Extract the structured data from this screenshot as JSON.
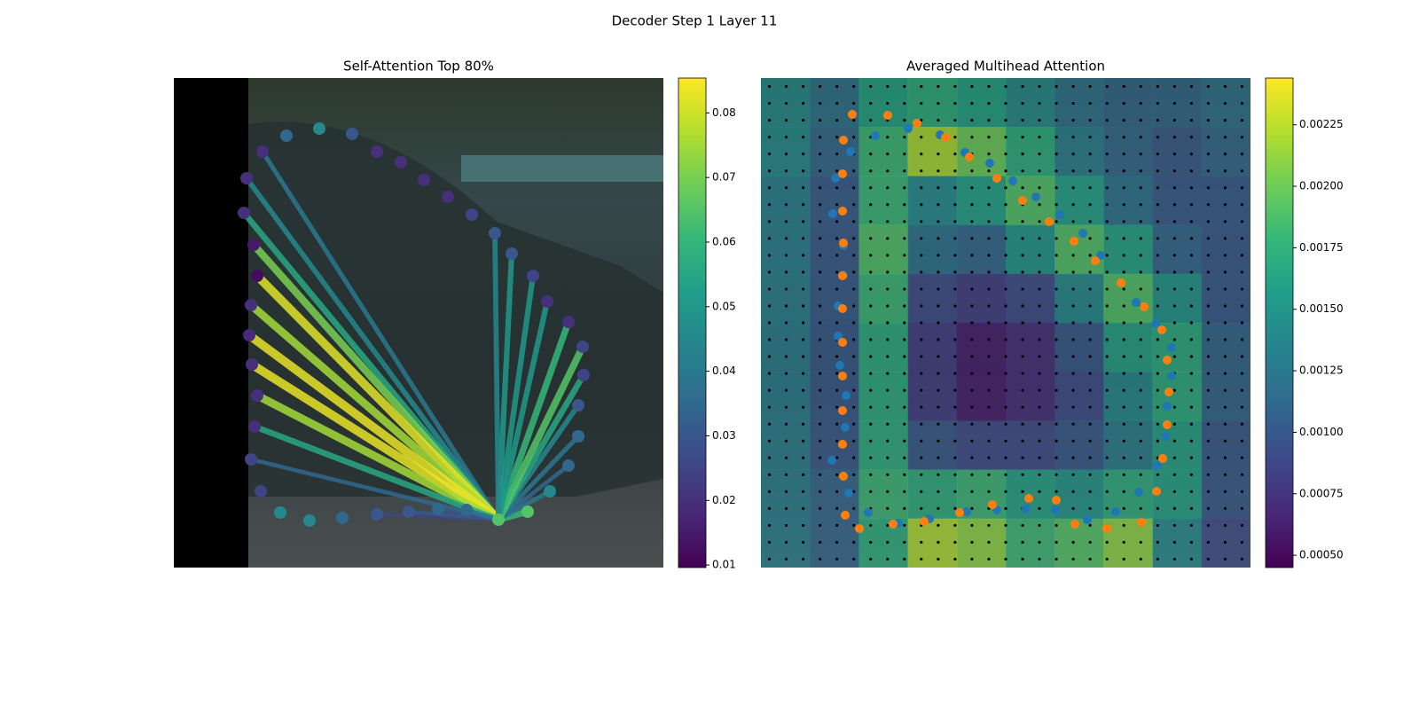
{
  "title": "Decoder Step 1 Layer 11",
  "chart_data": [
    {
      "type": "attention",
      "title": "Self-Attention Top 80%",
      "points": {
        "x": [
          100,
          82,
          79,
          90,
          94,
          87,
          85,
          88,
          94,
          91,
          87,
          98,
          120,
          153,
          190,
          229,
          265,
          298,
          330,
          366,
          399,
          424,
          445,
          456,
          456,
          462,
          461,
          445,
          421,
          405,
          381,
          362,
          336,
          309,
          282,
          256,
          229,
          201,
          164,
          127
        ],
        "y": [
          83,
          113,
          152,
          188,
          223,
          256,
          290,
          323,
          358,
          393,
          430,
          466,
          490,
          499,
          496,
          492,
          489,
          486,
          487,
          498,
          489,
          466,
          437,
          404,
          369,
          335,
          303,
          275,
          252,
          223,
          198,
          175,
          154,
          134,
          115,
          95,
          83,
          63,
          57,
          65
        ],
        "values": [
          0.02,
          0.02,
          0.02,
          0.015,
          0.012,
          0.02,
          0.018,
          0.02,
          0.02,
          0.02,
          0.025,
          0.025,
          0.045,
          0.045,
          0.035,
          0.03,
          0.03,
          0.035,
          0.035,
          0.065,
          0.065,
          0.045,
          0.035,
          0.035,
          0.03,
          0.025,
          0.025,
          0.02,
          0.02,
          0.025,
          0.03,
          0.03,
          0.025,
          0.02,
          0.02,
          0.02,
          0.02,
          0.03,
          0.045,
          0.035
        ]
      },
      "query": {
        "x": 366,
        "y": 498
      },
      "links": {
        "x": [
          100,
          82,
          79,
          90,
          94,
          87,
          85,
          88,
          94,
          91,
          87,
          229,
          265,
          298,
          330,
          399,
          424,
          445,
          456,
          456,
          462,
          461,
          445,
          421,
          405,
          381,
          362
        ],
        "y": [
          83,
          113,
          152,
          188,
          223,
          256,
          290,
          323,
          358,
          393,
          430,
          492,
          489,
          486,
          487,
          489,
          466,
          437,
          404,
          369,
          335,
          303,
          275,
          252,
          223,
          198,
          175
        ],
        "values": [
          0.04,
          0.045,
          0.055,
          0.07,
          0.082,
          0.075,
          0.083,
          0.083,
          0.075,
          0.055,
          0.035,
          0.025,
          0.03,
          0.03,
          0.04,
          0.06,
          0.04,
          0.035,
          0.04,
          0.045,
          0.055,
          0.065,
          0.06,
          0.05,
          0.05,
          0.05,
          0.045
        ]
      },
      "colorbar": {
        "lim": [
          0.0096,
          0.0854
        ],
        "ticks": [
          0.01,
          0.02,
          0.03,
          0.04,
          0.05,
          0.06,
          0.07,
          0.08
        ]
      }
    },
    {
      "type": "heatmap",
      "title": "Averaged Multihead Attention",
      "values": [
        [
          0.0014,
          0.0012,
          0.0016,
          0.0017,
          0.0016,
          0.0014,
          0.0012,
          0.0011,
          0.0011,
          0.0012
        ],
        [
          0.0014,
          0.0011,
          0.0018,
          0.0022,
          0.002,
          0.0017,
          0.0013,
          0.0011,
          0.001,
          0.0011
        ],
        [
          0.0013,
          0.001,
          0.0018,
          0.0014,
          0.0016,
          0.0019,
          0.0016,
          0.0012,
          0.001,
          0.001
        ],
        [
          0.0013,
          0.001,
          0.0019,
          0.0012,
          0.0011,
          0.0015,
          0.0019,
          0.0016,
          0.0011,
          0.001
        ],
        [
          0.0013,
          0.001,
          0.0018,
          0.0009,
          0.0008,
          0.0009,
          0.0014,
          0.0019,
          0.0015,
          0.001
        ],
        [
          0.0013,
          0.001,
          0.0017,
          0.0008,
          0.0006,
          0.0007,
          0.001,
          0.0016,
          0.0017,
          0.0011
        ],
        [
          0.0013,
          0.001,
          0.0017,
          0.0008,
          0.0006,
          0.0007,
          0.0009,
          0.0014,
          0.0017,
          0.0011
        ],
        [
          0.0013,
          0.001,
          0.0017,
          0.001,
          0.0009,
          0.0009,
          0.001,
          0.0013,
          0.0016,
          0.001
        ],
        [
          0.0013,
          0.0011,
          0.0018,
          0.0017,
          0.0018,
          0.0016,
          0.0015,
          0.0017,
          0.0016,
          0.001
        ],
        [
          0.0013,
          0.0011,
          0.0017,
          0.0022,
          0.0021,
          0.0018,
          0.0019,
          0.0021,
          0.0014,
          0.0009
        ]
      ],
      "series": [
        {
          "color": "#1f77b4",
          "x": [
            84,
            81,
            101,
            129,
            166,
            202,
            230,
            258,
            284,
            310,
            337,
            363,
            383,
            423,
            445,
            463,
            463,
            458,
            456,
            447,
            426,
            400,
            368,
            332,
            299,
            266,
            232,
            190,
            155,
            121,
            99,
            95,
            96,
            89,
            87,
            87,
            93,
            93,
            80
          ],
          "y": [
            113,
            153,
            83,
            65,
            57,
            64,
            84,
            96,
            116,
            134,
            154,
            175,
            200,
            253,
            277,
            304,
            336,
            370,
            404,
            437,
            467,
            489,
            498,
            487,
            486,
            487,
            489,
            497,
            502,
            490,
            468,
            394,
            358,
            324,
            291,
            257,
            222,
            189,
            431
          ]
        },
        {
          "color": "#ff7f0e",
          "x": [
            103,
            143,
            176,
            208,
            235,
            266,
            295,
            325,
            353,
            377,
            406,
            432,
            452,
            458,
            460,
            458,
            453,
            446,
            429,
            390,
            354,
            333,
            302,
            261,
            224,
            184,
            149,
            111,
            95,
            93,
            92,
            92,
            92,
            92,
            92,
            92,
            93,
            92,
            92,
            93
          ],
          "y": [
            41,
            42,
            51,
            67,
            89,
            113,
            138,
            162,
            184,
            206,
            231,
            258,
            284,
            318,
            354,
            391,
            429,
            466,
            501,
            508,
            503,
            476,
            474,
            481,
            490,
            500,
            503,
            508,
            493,
            449,
            413,
            375,
            336,
            298,
            260,
            223,
            186,
            150,
            108,
            70
          ]
        }
      ],
      "colorbar": {
        "lim": [
          0.00045,
          0.00244
        ],
        "ticks": [
          {
            "value": 0.0005,
            "label": "0.00050"
          },
          0.00075,
          {
            "value": 0.001,
            "label": "0.00100"
          },
          0.00125,
          {
            "value": 0.0015,
            "label": "0.00150"
          },
          0.00175,
          {
            "value": 0.002,
            "label": "0.00200"
          },
          0.00225
        ]
      }
    }
  ]
}
